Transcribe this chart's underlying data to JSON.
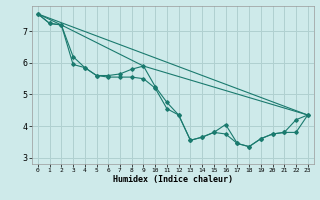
{
  "xlabel": "Humidex (Indice chaleur)",
  "bg_color": "#ceeaea",
  "grid_color": "#b0d0d0",
  "line_color": "#1a7a6e",
  "xlim": [
    -0.5,
    23.5
  ],
  "ylim": [
    2.8,
    7.8
  ],
  "yticks": [
    3,
    4,
    5,
    6,
    7
  ],
  "xticks": [
    0,
    1,
    2,
    3,
    4,
    5,
    6,
    7,
    8,
    9,
    10,
    11,
    12,
    13,
    14,
    15,
    16,
    17,
    18,
    19,
    20,
    21,
    22,
    23
  ],
  "series_with_markers": [
    [
      7.55,
      7.25,
      7.2,
      6.2,
      5.85,
      5.6,
      5.6,
      5.65,
      5.8,
      5.9,
      5.25,
      4.75,
      4.35,
      3.55,
      3.65,
      3.8,
      4.05,
      3.45,
      3.35,
      3.6,
      3.75,
      3.8,
      3.8,
      4.35
    ],
    [
      7.55,
      7.25,
      7.2,
      5.95,
      5.85,
      5.6,
      5.55,
      5.55,
      5.55,
      5.5,
      5.2,
      4.55,
      4.35,
      3.55,
      3.65,
      3.8,
      3.75,
      3.45,
      3.35,
      3.6,
      3.75,
      3.8,
      4.2,
      4.35
    ]
  ],
  "series_straight": [
    [
      [
        0,
        7.55
      ],
      [
        23,
        4.35
      ]
    ],
    [
      [
        0,
        7.55
      ],
      [
        2,
        7.2
      ],
      [
        9,
        5.9
      ],
      [
        23,
        4.35
      ]
    ]
  ]
}
